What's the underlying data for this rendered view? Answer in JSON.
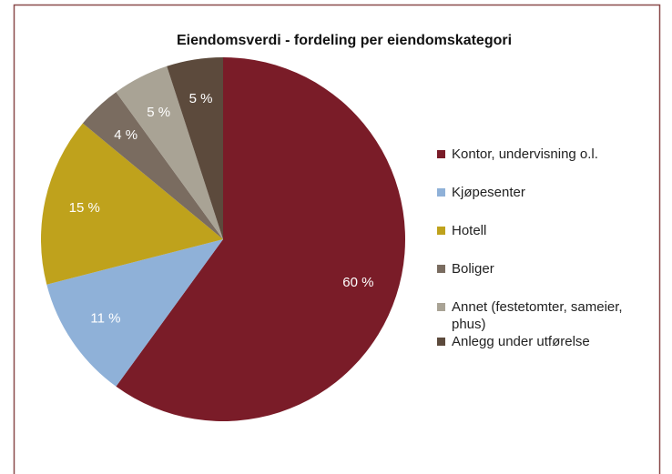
{
  "chart_data": {
    "type": "pie",
    "title": "Eiendomsverdi - fordeling per eiendomskategori",
    "categories": [
      "Kontor, undervisning o.l.",
      "Kjøpesenter",
      "Hotell",
      "Boliger",
      "Annet (festetomter, sameier, phus)",
      "Anlegg under utførelse"
    ],
    "values": [
      60,
      11,
      15,
      4,
      5,
      5
    ],
    "value_labels": [
      "60 %",
      "11 %",
      "15 %",
      "4 %",
      "5 %",
      "5 %"
    ],
    "colors": [
      "#7a1c28",
      "#8fb1d8",
      "#bfa21c",
      "#7a6c60",
      "#a9a395",
      "#5c4a3c"
    ],
    "legend": "right"
  }
}
